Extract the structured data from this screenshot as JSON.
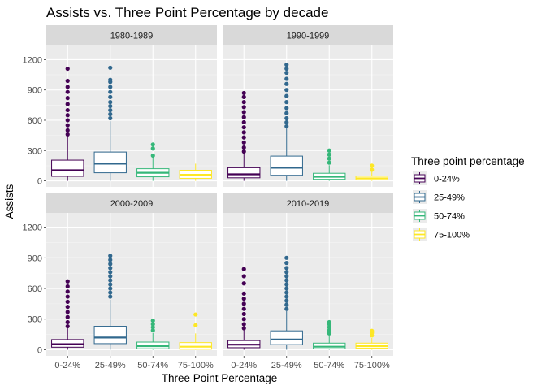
{
  "chart_data": {
    "type": "boxplot",
    "title": "Assists vs. Three Point Percentage by decade",
    "xlabel": "Three Point Percentage",
    "ylabel": "Assists",
    "ylim": [
      -60,
      1340
    ],
    "yticks": [
      0,
      300,
      600,
      900,
      1200
    ],
    "categories": [
      "0-24%",
      "25-49%",
      "50-74%",
      "75-100%"
    ],
    "legend": {
      "title": "Three point percentage",
      "position": "right",
      "entries": [
        "0-24%",
        "25-49%",
        "50-74%",
        "75-100%"
      ]
    },
    "colors": [
      "#440154",
      "#31688e",
      "#35b779",
      "#fde725"
    ],
    "panel_background": "#ebebeb",
    "strip_background": "#d9d9d9",
    "grid": true,
    "facets": [
      {
        "label": "1980-1989",
        "boxes": [
          {
            "category": "0-24%",
            "q1": 45,
            "median": 105,
            "q3": 205,
            "whisker_low": 0,
            "whisker_high": 440,
            "outliers": [
              460,
              500,
              550,
              600,
              650,
              700,
              760,
              820,
              880,
              930,
              990,
              1110
            ]
          },
          {
            "category": "25-49%",
            "q1": 80,
            "median": 170,
            "q3": 285,
            "whisker_low": 0,
            "whisker_high": 590,
            "outliers": [
              620,
              660,
              700,
              740,
              780,
              830,
              880,
              930,
              980,
              1000,
              1120
            ]
          },
          {
            "category": "50-74%",
            "q1": 40,
            "median": 80,
            "q3": 120,
            "whisker_low": 0,
            "whisker_high": 230,
            "outliers": [
              250,
              320,
              360
            ]
          },
          {
            "category": "75-100%",
            "q1": 25,
            "median": 60,
            "q3": 105,
            "whisker_low": 0,
            "whisker_high": 170,
            "outliers": []
          }
        ]
      },
      {
        "label": "1990-1999",
        "boxes": [
          {
            "category": "0-24%",
            "q1": 30,
            "median": 65,
            "q3": 130,
            "whisker_low": 0,
            "whisker_high": 275,
            "outliers": [
              290,
              330,
              380,
              430,
              480,
              530,
              580,
              630,
              680,
              730,
              780,
              830,
              870
            ]
          },
          {
            "category": "25-49%",
            "q1": 55,
            "median": 130,
            "q3": 245,
            "whisker_low": 0,
            "whisker_high": 520,
            "outliers": [
              540,
              580,
              620,
              670,
              720,
              780,
              840,
              900,
              960,
              1010,
              1070,
              1110,
              1150
            ]
          },
          {
            "category": "50-74%",
            "q1": 15,
            "median": 40,
            "q3": 75,
            "whisker_low": 0,
            "whisker_high": 155,
            "outliers": [
              180,
              220,
              260,
              300
            ]
          },
          {
            "category": "75-100%",
            "q1": 10,
            "median": 25,
            "q3": 45,
            "whisker_low": 0,
            "whisker_high": 90,
            "outliers": [
              110,
              150
            ]
          }
        ]
      },
      {
        "label": "2000-2009",
        "boxes": [
          {
            "category": "0-24%",
            "q1": 25,
            "median": 55,
            "q3": 100,
            "whisker_low": 0,
            "whisker_high": 210,
            "outliers": [
              230,
              270,
              320,
              370,
              420,
              470,
              520,
              570,
              620,
              670
            ]
          },
          {
            "category": "25-49%",
            "q1": 60,
            "median": 120,
            "q3": 230,
            "whisker_low": 0,
            "whisker_high": 490,
            "outliers": [
              520,
              560,
              600,
              640,
              680,
              720,
              760,
              800,
              840,
              880,
              920
            ]
          },
          {
            "category": "50-74%",
            "q1": 10,
            "median": 35,
            "q3": 75,
            "whisker_low": 0,
            "whisker_high": 165,
            "outliers": [
              190,
              220,
              250,
              285
            ]
          },
          {
            "category": "75-100%",
            "q1": 5,
            "median": 30,
            "q3": 70,
            "whisker_low": 0,
            "whisker_high": 160,
            "outliers": [
              240,
              345
            ]
          }
        ]
      },
      {
        "label": "2010-2019",
        "boxes": [
          {
            "category": "0-24%",
            "q1": 20,
            "median": 50,
            "q3": 90,
            "whisker_low": 0,
            "whisker_high": 190,
            "outliers": [
              210,
              250,
              300,
              350,
              400,
              450,
              500,
              550,
              650,
              720,
              790
            ]
          },
          {
            "category": "25-49%",
            "q1": 50,
            "median": 100,
            "q3": 185,
            "whisker_low": 0,
            "whisker_high": 380,
            "outliers": [
              400,
              440,
              480,
              520,
              560,
              600,
              640,
              680,
              720,
              760,
              800,
              850,
              900
            ]
          },
          {
            "category": "50-74%",
            "q1": 10,
            "median": 30,
            "q3": 65,
            "whisker_low": 0,
            "whisker_high": 140,
            "outliers": [
              160,
              190,
              220,
              250,
              270
            ]
          },
          {
            "category": "75-100%",
            "q1": 15,
            "median": 35,
            "q3": 65,
            "whisker_low": 0,
            "whisker_high": 115,
            "outliers": [
              140,
              165,
              185
            ]
          }
        ]
      }
    ]
  }
}
